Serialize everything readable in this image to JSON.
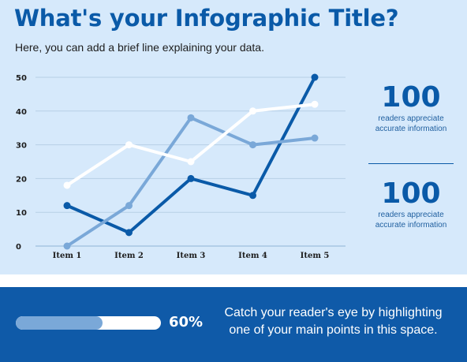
{
  "header": {
    "title": "What's your Infographic Title?",
    "subtitle": "Here, you can add a brief line explaining your data."
  },
  "chart_data": {
    "type": "line",
    "categories": [
      "Item 1",
      "Item 2",
      "Item 3",
      "Item 4",
      "Item 5"
    ],
    "series": [
      {
        "values": [
          12,
          4,
          20,
          15,
          50
        ],
        "color": "#0a5aa8"
      },
      {
        "values": [
          0,
          12,
          38,
          30,
          32
        ],
        "color": "#7aa8d8"
      },
      {
        "values": [
          18,
          30,
          25,
          40,
          42
        ],
        "color": "#ffffff"
      }
    ],
    "yticks": [
      0,
      10,
      20,
      30,
      40,
      50
    ],
    "ylim": [
      0,
      50
    ],
    "grid": true,
    "title": "",
    "xlabel": "",
    "ylabel": ""
  },
  "stats": [
    {
      "value": "100",
      "label_line1": "readers appreciate",
      "label_line2": "accurate information"
    },
    {
      "value": "100",
      "label_line1": "readers appreciate",
      "label_line2": "accurate information"
    }
  ],
  "footer": {
    "progress_value": 60,
    "progress_text": "60%",
    "callout_line1": "Catch your reader's eye by highlighting",
    "callout_line2": "one of your main points in this space."
  },
  "colors": {
    "brand_blue": "#0a5aa8",
    "light_blue": "#7aa8d8",
    "top_background": "#d6e9fb",
    "footer_background": "#0f5aa8"
  }
}
